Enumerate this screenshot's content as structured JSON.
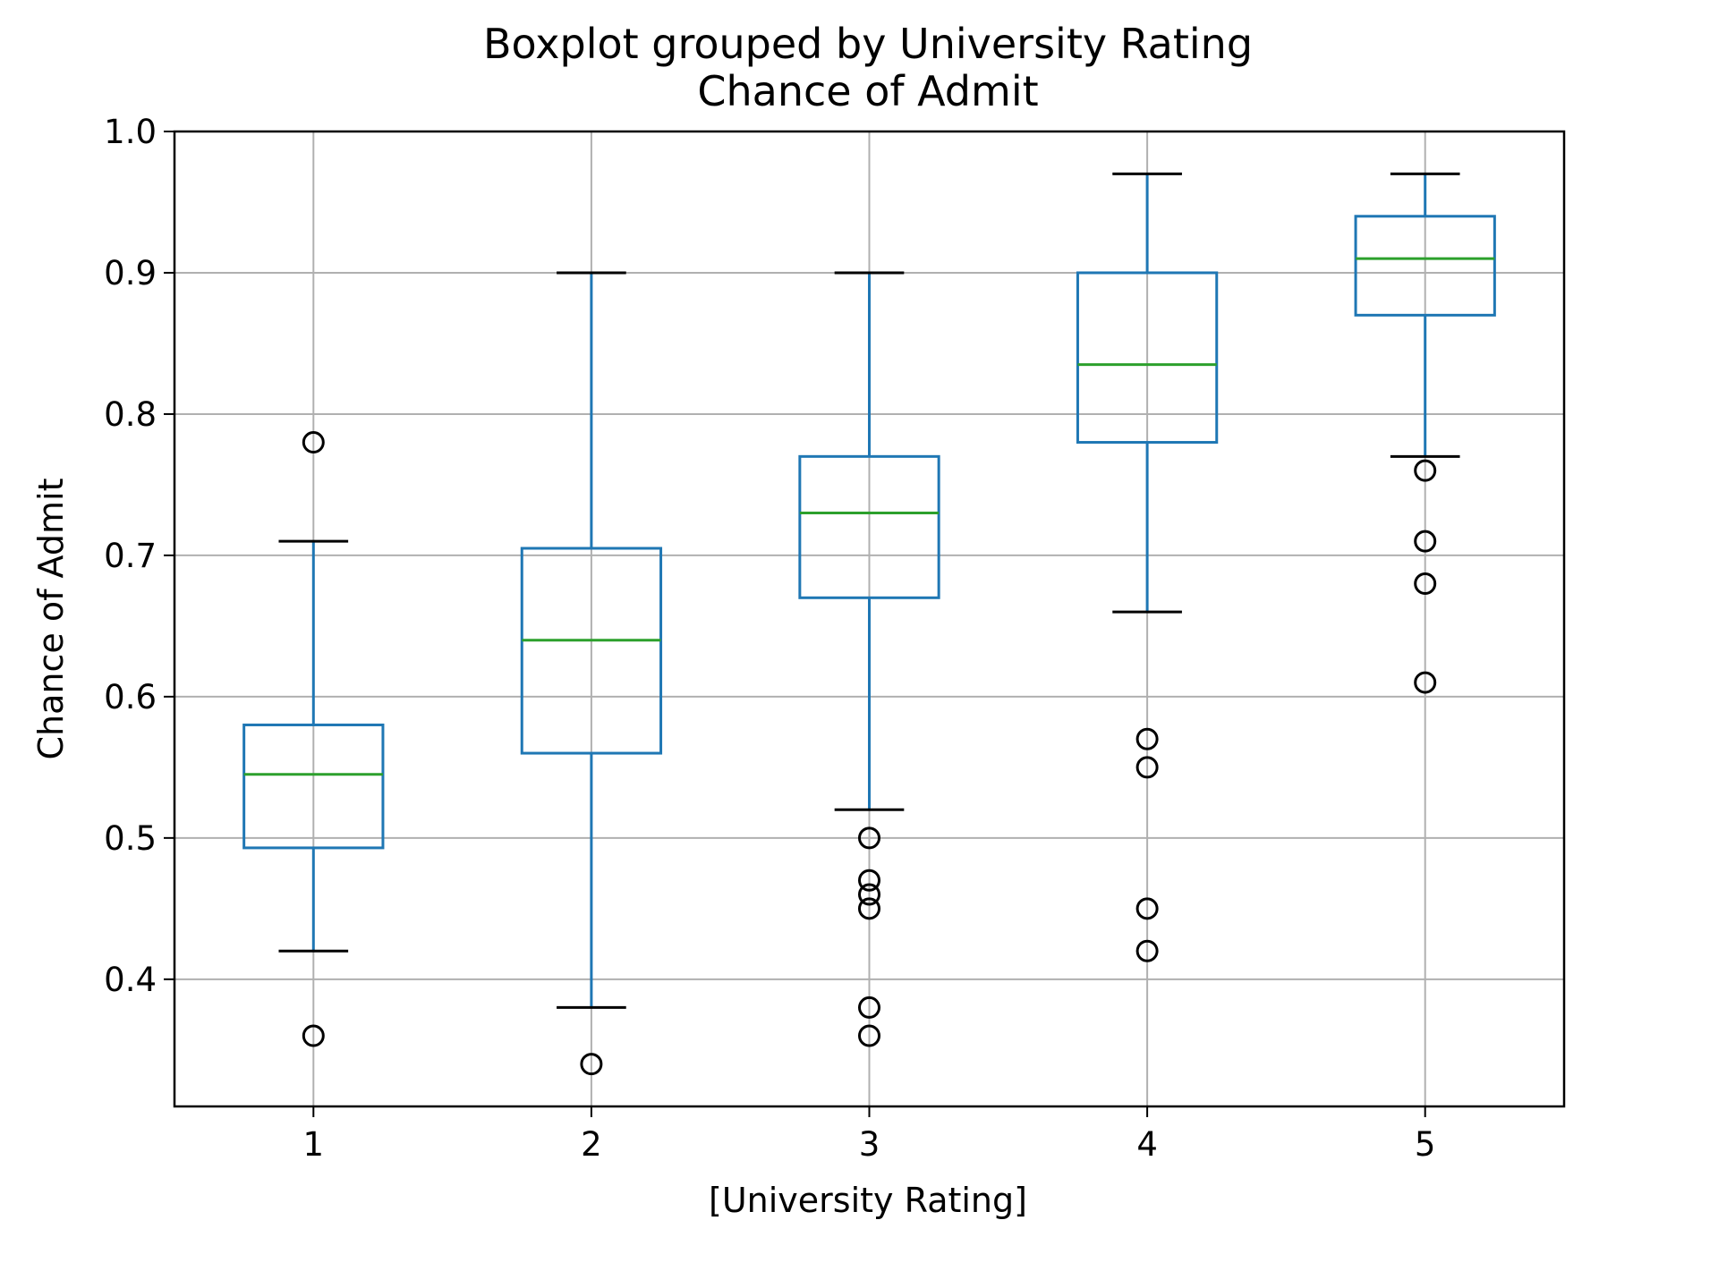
{
  "chart_data": {
    "type": "boxplot",
    "title": "Boxplot grouped by University Rating",
    "subtitle": "Chance of Admit",
    "xlabel": "[University Rating]",
    "ylabel": "Chance of Admit",
    "ylim": [
      0.31,
      1.0
    ],
    "yticks": [
      {
        "value": 0.4,
        "label": "0.4"
      },
      {
        "value": 0.5,
        "label": "0.5"
      },
      {
        "value": 0.6,
        "label": "0.6"
      },
      {
        "value": 0.7,
        "label": "0.7"
      },
      {
        "value": 0.8,
        "label": "0.8"
      },
      {
        "value": 0.9,
        "label": "0.9"
      },
      {
        "value": 1.0,
        "label": "1.0"
      }
    ],
    "grid": true,
    "colors": {
      "box": "#1f77b4",
      "median": "#2ca02c",
      "cap": "#000000",
      "flier": "#000000",
      "grid": "#b0b0b0"
    },
    "groups": [
      {
        "label": "1",
        "whisker_low": 0.42,
        "q1": 0.493,
        "median": 0.545,
        "q3": 0.58,
        "whisker_high": 0.71,
        "outliers": [
          0.78,
          0.36
        ]
      },
      {
        "label": "2",
        "whisker_low": 0.38,
        "q1": 0.56,
        "median": 0.64,
        "q3": 0.705,
        "whisker_high": 0.9,
        "outliers": [
          0.34
        ]
      },
      {
        "label": "3",
        "whisker_low": 0.52,
        "q1": 0.67,
        "median": 0.73,
        "q3": 0.77,
        "whisker_high": 0.9,
        "outliers": [
          0.5,
          0.47,
          0.46,
          0.45,
          0.38,
          0.36
        ]
      },
      {
        "label": "4",
        "whisker_low": 0.66,
        "q1": 0.78,
        "median": 0.835,
        "q3": 0.9,
        "whisker_high": 0.97,
        "outliers": [
          0.57,
          0.55,
          0.45,
          0.42
        ]
      },
      {
        "label": "5",
        "whisker_low": 0.77,
        "q1": 0.87,
        "median": 0.91,
        "q3": 0.94,
        "whisker_high": 0.97,
        "outliers": [
          0.76,
          0.71,
          0.68,
          0.61
        ]
      }
    ]
  }
}
